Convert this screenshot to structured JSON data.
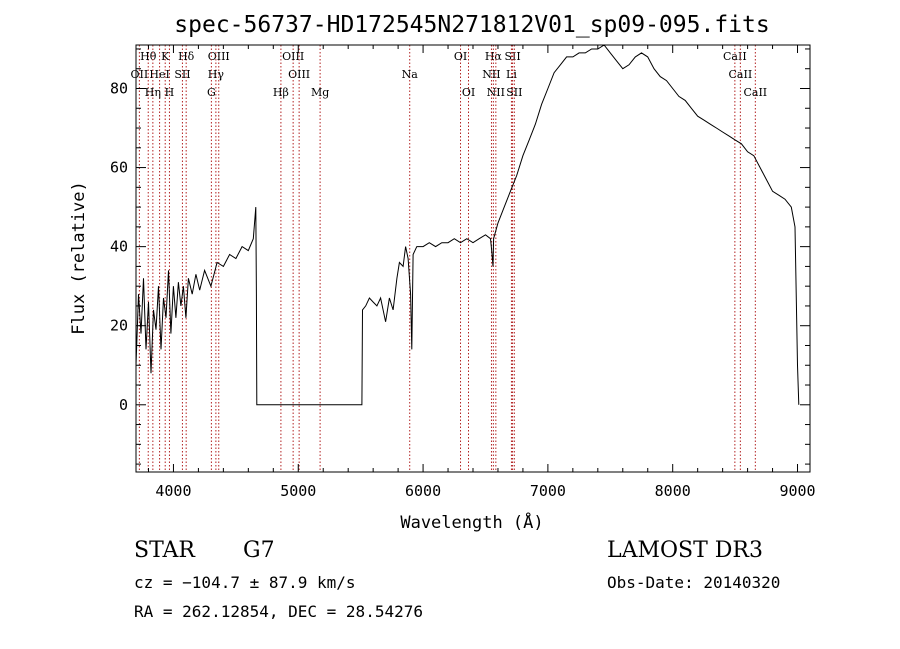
{
  "chart_data": {
    "type": "line",
    "title": "spec-56737-HD172545N271812V01_sp09-095.fits",
    "xlabel": "Wavelength (Å)",
    "ylabel": "Flux (relative)",
    "xlim": [
      3700,
      9100
    ],
    "ylim": [
      -17,
      91
    ],
    "xticks": [
      "4000",
      "5000",
      "6000",
      "7000",
      "8000",
      "9000"
    ],
    "yticks": [
      "0",
      "20",
      "40",
      "60",
      "80"
    ],
    "grid": false,
    "series": [
      {
        "color": "#000000",
        "points": [
          [
            3700,
            10
          ],
          [
            3720,
            28
          ],
          [
            3740,
            18
          ],
          [
            3760,
            32
          ],
          [
            3780,
            14
          ],
          [
            3800,
            26
          ],
          [
            3820,
            8
          ],
          [
            3840,
            24
          ],
          [
            3860,
            19
          ],
          [
            3880,
            30
          ],
          [
            3900,
            14
          ],
          [
            3920,
            27
          ],
          [
            3940,
            22
          ],
          [
            3960,
            34
          ],
          [
            3980,
            18
          ],
          [
            4000,
            30
          ],
          [
            4020,
            22
          ],
          [
            4040,
            31
          ],
          [
            4060,
            25
          ],
          [
            4080,
            30
          ],
          [
            4100,
            22
          ],
          [
            4120,
            32
          ],
          [
            4150,
            28
          ],
          [
            4180,
            33
          ],
          [
            4210,
            29
          ],
          [
            4250,
            34
          ],
          [
            4300,
            30
          ],
          [
            4350,
            36
          ],
          [
            4400,
            35
          ],
          [
            4450,
            38
          ],
          [
            4500,
            37
          ],
          [
            4550,
            40
          ],
          [
            4600,
            39
          ],
          [
            4640,
            42
          ],
          [
            4660,
            50
          ],
          [
            4665,
            28
          ],
          [
            4668,
            0
          ],
          [
            5000,
            0
          ],
          [
            5300,
            0
          ],
          [
            5510,
            0
          ],
          [
            5515,
            24
          ],
          [
            5540,
            25
          ],
          [
            5570,
            27
          ],
          [
            5600,
            26
          ],
          [
            5630,
            25
          ],
          [
            5660,
            27
          ],
          [
            5700,
            21
          ],
          [
            5730,
            27
          ],
          [
            5760,
            24
          ],
          [
            5790,
            32
          ],
          [
            5810,
            36
          ],
          [
            5840,
            35
          ],
          [
            5860,
            40
          ],
          [
            5880,
            37
          ],
          [
            5900,
            28
          ],
          [
            5910,
            14
          ],
          [
            5920,
            38
          ],
          [
            5950,
            40
          ],
          [
            6000,
            40
          ],
          [
            6050,
            41
          ],
          [
            6100,
            40
          ],
          [
            6150,
            41
          ],
          [
            6200,
            41
          ],
          [
            6250,
            42
          ],
          [
            6300,
            41
          ],
          [
            6350,
            42
          ],
          [
            6400,
            41
          ],
          [
            6450,
            42
          ],
          [
            6500,
            43
          ],
          [
            6540,
            42
          ],
          [
            6550,
            39
          ],
          [
            6560,
            35
          ],
          [
            6565,
            42
          ],
          [
            6600,
            46
          ],
          [
            6650,
            50
          ],
          [
            6700,
            54
          ],
          [
            6750,
            58
          ],
          [
            6800,
            63
          ],
          [
            6850,
            67
          ],
          [
            6900,
            71
          ],
          [
            6950,
            76
          ],
          [
            7000,
            80
          ],
          [
            7050,
            84
          ],
          [
            7100,
            86
          ],
          [
            7150,
            88
          ],
          [
            7200,
            88
          ],
          [
            7250,
            89
          ],
          [
            7300,
            89
          ],
          [
            7350,
            90
          ],
          [
            7400,
            90
          ],
          [
            7450,
            91
          ],
          [
            7500,
            89
          ],
          [
            7550,
            87
          ],
          [
            7600,
            85
          ],
          [
            7650,
            86
          ],
          [
            7700,
            88
          ],
          [
            7750,
            89
          ],
          [
            7800,
            88
          ],
          [
            7850,
            85
          ],
          [
            7900,
            83
          ],
          [
            7950,
            82
          ],
          [
            8000,
            80
          ],
          [
            8050,
            78
          ],
          [
            8100,
            77
          ],
          [
            8150,
            75
          ],
          [
            8200,
            73
          ],
          [
            8250,
            72
          ],
          [
            8300,
            71
          ],
          [
            8350,
            70
          ],
          [
            8400,
            69
          ],
          [
            8450,
            68
          ],
          [
            8500,
            67
          ],
          [
            8550,
            66
          ],
          [
            8600,
            64
          ],
          [
            8650,
            63
          ],
          [
            8700,
            60
          ],
          [
            8750,
            57
          ],
          [
            8800,
            54
          ],
          [
            8850,
            53
          ],
          [
            8900,
            52
          ],
          [
            8950,
            50
          ],
          [
            8980,
            45
          ],
          [
            9000,
            10
          ],
          [
            9010,
            0
          ]
        ]
      }
    ],
    "lines": [
      {
        "label": "Hθ",
        "x": 3798,
        "row": 0
      },
      {
        "label": "K",
        "x": 3934,
        "row": 0
      },
      {
        "label": "Hδ",
        "x": 4102,
        "row": 0
      },
      {
        "label": "OIII",
        "x": 4363,
        "row": 0
      },
      {
        "label": "OIII",
        "x": 4959,
        "row": 0
      },
      {
        "label": "OI",
        "x": 6300,
        "row": 0
      },
      {
        "label": "Hα",
        "x": 6563,
        "row": 0
      },
      {
        "label": "SII",
        "x": 6717,
        "row": 0
      },
      {
        "label": "CaII",
        "x": 8498,
        "row": 0
      },
      {
        "label": "OII",
        "x": 3727,
        "row": 1
      },
      {
        "label": "HeI",
        "x": 3889,
        "row": 1
      },
      {
        "label": "SII",
        "x": 4072,
        "row": 1
      },
      {
        "label": "Hγ",
        "x": 4340,
        "row": 1
      },
      {
        "label": "OIII",
        "x": 5007,
        "row": 1
      },
      {
        "label": "Na",
        "x": 5893,
        "row": 1
      },
      {
        "label": "NII",
        "x": 6548,
        "row": 1
      },
      {
        "label": "Li",
        "x": 6708,
        "row": 1
      },
      {
        "label": "CaII",
        "x": 8542,
        "row": 1
      },
      {
        "label": "Hη",
        "x": 3835,
        "row": 2
      },
      {
        "label": "H",
        "x": 3968,
        "row": 2
      },
      {
        "label": "G",
        "x": 4304,
        "row": 2
      },
      {
        "label": "Hβ",
        "x": 4861,
        "row": 2
      },
      {
        "label": "Mg",
        "x": 5175,
        "row": 2
      },
      {
        "label": "OI",
        "x": 6364,
        "row": 2
      },
      {
        "label": "NII",
        "x": 6583,
        "row": 2
      },
      {
        "label": "SII",
        "x": 6731,
        "row": 2
      },
      {
        "label": "CaII",
        "x": 8662,
        "row": 2
      }
    ]
  },
  "info": {
    "object_class": "STAR",
    "subclass": "G7",
    "survey": "LAMOST DR3",
    "redshift": "cz = −104.7 ± 87.9 km/s",
    "obs_date": "Obs-Date: 20140320",
    "coords": "RA = 262.12854, DEC =  28.54276"
  },
  "colors": {
    "spectrum": "#000000",
    "line_markers": "#b22222"
  }
}
